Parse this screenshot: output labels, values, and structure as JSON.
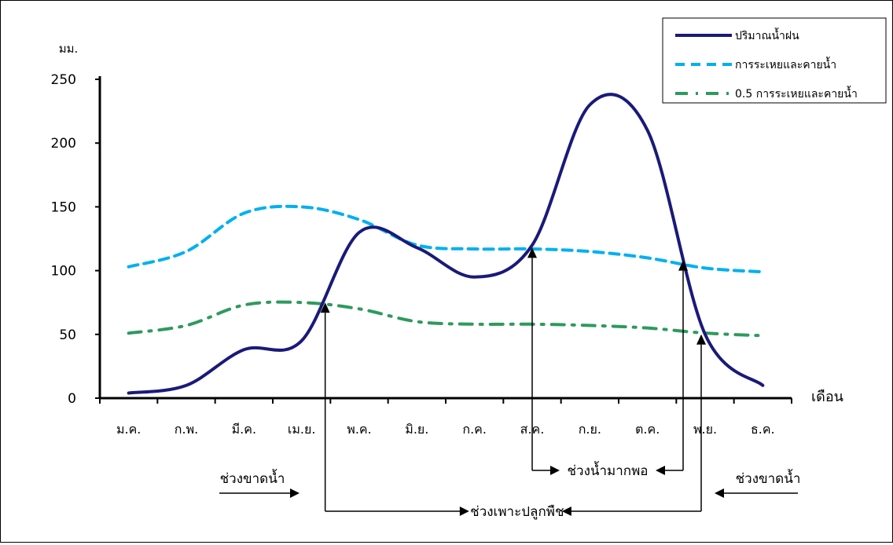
{
  "chart_data": {
    "type": "line",
    "title": "",
    "ylabel": "มม.",
    "xlabel": "เดือน",
    "ylim": [
      0,
      250
    ],
    "yticks": [
      0,
      50,
      100,
      150,
      200,
      250
    ],
    "categories": [
      "ม.ค.",
      "ก.พ.",
      "มี.ค.",
      "เม.ย.",
      "พ.ค.",
      "มิ.ย.",
      "ก.ค.",
      "ส.ค.",
      "ก.ย.",
      "ต.ค.",
      "พ.ย.",
      "ธ.ค."
    ],
    "grid": false,
    "legend_position": "top-right",
    "series": [
      {
        "name": "ปริมาณน้ำฝน",
        "color": "#1a1a7a",
        "style": "solid",
        "values": [
          4,
          10,
          38,
          45,
          130,
          118,
          95,
          120,
          230,
          210,
          50,
          10
        ]
      },
      {
        "name": "การระเหยและคายน้ำ",
        "color": "#00b0f0",
        "style": "dashed",
        "values": [
          103,
          115,
          145,
          150,
          140,
          120,
          117,
          117,
          115,
          110,
          102,
          99
        ]
      },
      {
        "name": "0.5 การระเหยและคายน้ำ",
        "color": "#2e9a5e",
        "style": "dash-dot",
        "values": [
          51,
          57,
          73,
          75,
          70,
          60,
          58,
          58,
          57,
          55,
          51,
          49
        ]
      }
    ],
    "annotations": [
      "ช่วงขาดน้ำ",
      "ช่วงน้ำมากพอ",
      "ช่วงขาดน้ำ",
      "ช่วงเพาะปลูกพืช"
    ]
  }
}
